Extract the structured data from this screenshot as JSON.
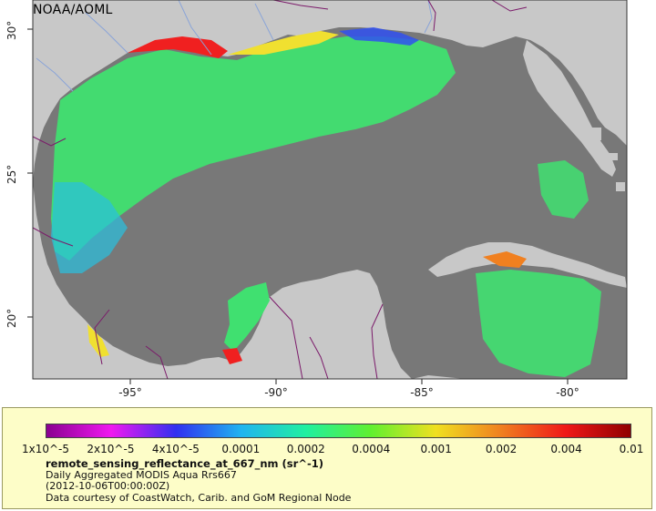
{
  "map": {
    "credit_title": "NOAA/AOML",
    "lat_ticks": [
      "30°",
      "25°",
      "20°"
    ],
    "lon_ticks": [
      "-95°",
      "-90°",
      "-85°",
      "-80°"
    ],
    "colors": {
      "ocean_nodata": "#787878",
      "land": "#c8c8c8",
      "border": "#7b1a6a",
      "river": "#8aa4d8",
      "coast": "#2a2a2a"
    }
  },
  "legend": {
    "colorbar_labels": [
      "1x10^-5",
      "2x10^-5",
      "4x10^-5",
      "0.0001",
      "0.0002",
      "0.0004",
      "0.001",
      "0.002",
      "0.004",
      "0.01"
    ],
    "colorbar_colors": [
      "#8a0090",
      "#f018f0",
      "#3030f0",
      "#20b4f0",
      "#20f0a0",
      "#60f030",
      "#f0e020",
      "#f08020",
      "#f01818",
      "#900000"
    ],
    "variable_name": "remote_sensing_reflectance_at_667_nm (sr^-1)",
    "product_line": "Daily Aggregated MODIS Aqua Rrs667",
    "date_line": "(2012-10-06T00:00:00Z)",
    "credit_line": "Data courtesy of CoastWatch, Carib. and GoM Regional Node"
  }
}
